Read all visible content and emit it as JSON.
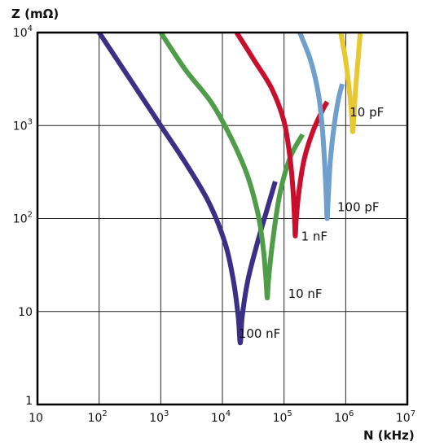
{
  "chart_data": {
    "type": "line",
    "title": "",
    "ylabel": "Z (mΩ)",
    "xlabel": "N (kHz)",
    "x_scale": "log",
    "y_scale": "log",
    "xlim": [
      10,
      10000000
    ],
    "ylim": [
      1,
      10000
    ],
    "grid": true,
    "x_ticks": [
      {
        "value": 10,
        "base": "10",
        "exp": ""
      },
      {
        "value": 100,
        "base": "10",
        "exp": "2"
      },
      {
        "value": 1000,
        "base": "10",
        "exp": "3"
      },
      {
        "value": 10000,
        "base": "10",
        "exp": "4"
      },
      {
        "value": 100000,
        "base": "10",
        "exp": "5"
      },
      {
        "value": 1000000,
        "base": "10",
        "exp": "6"
      },
      {
        "value": 10000000,
        "base": "10",
        "exp": "7"
      }
    ],
    "y_ticks": [
      {
        "value": 1,
        "base": "1",
        "exp": ""
      },
      {
        "value": 10,
        "base": "10",
        "exp": ""
      },
      {
        "value": 100,
        "base": "10",
        "exp": "2"
      },
      {
        "value": 1000,
        "base": "10",
        "exp": "3"
      },
      {
        "value": 10000,
        "base": "10",
        "exp": "4"
      }
    ],
    "series": [
      {
        "name": "100 nF",
        "color": "#3b2f86",
        "points": [
          [
            100,
            10000
          ],
          [
            250,
            4000
          ],
          [
            1000,
            1000
          ],
          [
            2500,
            400
          ],
          [
            6000,
            150
          ],
          [
            11000,
            55
          ],
          [
            15000,
            22
          ],
          [
            18000,
            9
          ],
          [
            19500,
            4.6
          ],
          [
            21000,
            9
          ],
          [
            26000,
            22
          ],
          [
            37000,
            55
          ],
          [
            52000,
            120
          ],
          [
            72000,
            250
          ]
        ]
      },
      {
        "name": "10 nF",
        "color": "#4f9d48",
        "points": [
          [
            1000,
            10000
          ],
          [
            2500,
            4000
          ],
          [
            6500,
            1800
          ],
          [
            13000,
            800
          ],
          [
            25000,
            300
          ],
          [
            38000,
            110
          ],
          [
            46000,
            48
          ],
          [
            51000,
            22
          ],
          [
            53500,
            14
          ],
          [
            56000,
            22
          ],
          [
            65000,
            55
          ],
          [
            85000,
            180
          ],
          [
            125000,
            450
          ],
          [
            200000,
            800
          ]
        ]
      },
      {
        "name": "1 nF",
        "color": "#c8102e",
        "points": [
          [
            17000,
            10000
          ],
          [
            33000,
            5000
          ],
          [
            63000,
            2500
          ],
          [
            100000,
            1100
          ],
          [
            125000,
            450
          ],
          [
            140000,
            200
          ],
          [
            148000,
            100
          ],
          [
            152000,
            65
          ],
          [
            158000,
            100
          ],
          [
            175000,
            200
          ],
          [
            215000,
            450
          ],
          [
            300000,
            900
          ],
          [
            430000,
            1500
          ],
          [
            500000,
            1800
          ]
        ]
      },
      {
        "name": "100 pF",
        "color": "#6e9fcd",
        "points": [
          [
            180000,
            10000
          ],
          [
            270000,
            5000
          ],
          [
            360000,
            2200
          ],
          [
            420000,
            900
          ],
          [
            460000,
            350
          ],
          [
            485000,
            160
          ],
          [
            500000,
            100
          ],
          [
            520000,
            160
          ],
          [
            560000,
            400
          ],
          [
            650000,
            1000
          ],
          [
            760000,
            1900
          ],
          [
            880000,
            2800
          ]
        ]
      },
      {
        "name": "10 pF",
        "color": "#e8c830",
        "points": [
          [
            830000,
            10000
          ],
          [
            1000000,
            5000
          ],
          [
            1160000,
            2200
          ],
          [
            1260000,
            1200
          ],
          [
            1300000,
            860
          ],
          [
            1350000,
            1200
          ],
          [
            1450000,
            2500
          ],
          [
            1580000,
            5000
          ],
          [
            1720000,
            10000
          ]
        ]
      }
    ],
    "annotations": [
      {
        "text": "10 pF",
        "series": "10 pF",
        "x": 2200000,
        "y": 1250
      },
      {
        "text": "100 pF",
        "series": "100 pF",
        "x": 1600000,
        "y": 120
      },
      {
        "text": "1 nF",
        "series": "1 nF",
        "x": 310000,
        "y": 58
      },
      {
        "text": "10 nF",
        "series": "10 nF",
        "x": 220000,
        "y": 14
      },
      {
        "text": "100 nF",
        "series": "100 nF",
        "x": 40000,
        "y": 5.2
      }
    ]
  }
}
